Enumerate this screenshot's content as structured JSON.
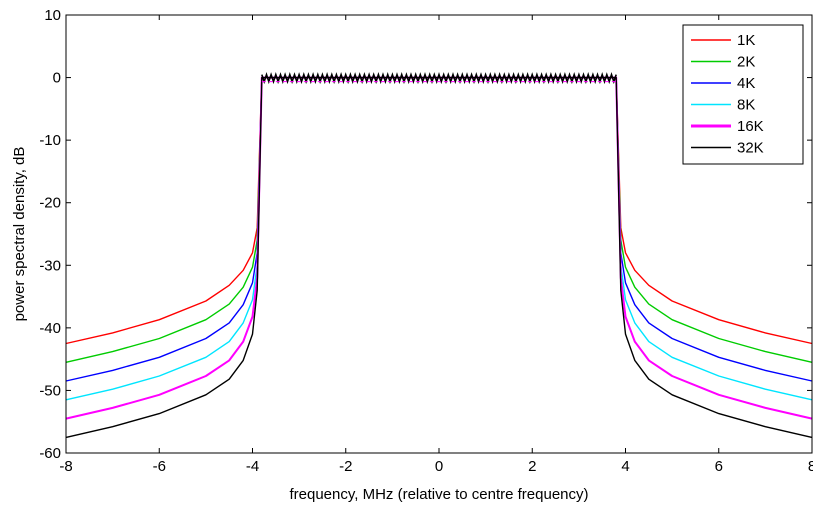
{
  "chart_data": {
    "type": "line",
    "title": "",
    "xlabel": "frequency, MHz (relative to centre frequency)",
    "ylabel": "power spectral density, dB",
    "xlim": [
      -8,
      8
    ],
    "ylim": [
      -60,
      10
    ],
    "xticks": [
      -8,
      -6,
      -4,
      -2,
      0,
      2,
      4,
      6,
      8
    ],
    "yticks": [
      10,
      0,
      -10,
      -20,
      -30,
      -40,
      -50,
      -60
    ],
    "grid": false,
    "legend_position": "top-right",
    "passband_edge_mhz": 3.8,
    "passband_level_db": 0,
    "series": [
      {
        "name": "1K",
        "color": "#ff0000",
        "x": [
          -8,
          -7,
          -6,
          -5,
          -4.5,
          -4.2,
          -4.0,
          -3.9,
          3.9,
          4.0,
          4.2,
          4.5,
          5,
          6,
          7,
          8
        ],
        "y": [
          -42.5,
          -40.8,
          -38.7,
          -35.7,
          -33.2,
          -30.8,
          -28.0,
          -24.0,
          -24.0,
          -28.0,
          -30.8,
          -33.2,
          -35.7,
          -38.7,
          -40.8,
          -42.5
        ]
      },
      {
        "name": "2K",
        "color": "#00cc00",
        "x": [
          -8,
          -7,
          -6,
          -5,
          -4.5,
          -4.2,
          -4.0,
          -3.9,
          3.9,
          4.0,
          4.2,
          4.5,
          5,
          6,
          7,
          8
        ],
        "y": [
          -45.5,
          -43.8,
          -41.7,
          -38.7,
          -36.2,
          -33.5,
          -30.3,
          -26.0,
          -26.0,
          -30.3,
          -33.5,
          -36.2,
          -38.7,
          -41.7,
          -43.8,
          -45.5
        ]
      },
      {
        "name": "4K",
        "color": "#0000ff",
        "x": [
          -8,
          -7,
          -6,
          -5,
          -4.5,
          -4.2,
          -4.0,
          -3.9,
          3.9,
          4.0,
          4.2,
          4.5,
          5,
          6,
          7,
          8
        ],
        "y": [
          -48.5,
          -46.8,
          -44.7,
          -41.7,
          -39.2,
          -36.3,
          -32.8,
          -28.0,
          -28.0,
          -32.8,
          -36.3,
          -39.2,
          -41.7,
          -44.7,
          -46.8,
          -48.5
        ]
      },
      {
        "name": "8K",
        "color": "#00e5ff",
        "x": [
          -8,
          -7,
          -6,
          -5,
          -4.5,
          -4.2,
          -4.0,
          -3.9,
          3.9,
          4.0,
          4.2,
          4.5,
          5,
          6,
          7,
          8
        ],
        "y": [
          -51.5,
          -49.8,
          -47.7,
          -44.7,
          -42.2,
          -39.2,
          -35.5,
          -30.0,
          -30.0,
          -35.5,
          -39.2,
          -42.2,
          -44.7,
          -47.7,
          -49.8,
          -51.5
        ]
      },
      {
        "name": "16K",
        "color": "#ff00ff",
        "x": [
          -8,
          -7,
          -6,
          -5,
          -4.5,
          -4.2,
          -4.0,
          -3.9,
          3.9,
          4.0,
          4.2,
          4.5,
          5,
          6,
          7,
          8
        ],
        "y": [
          -54.5,
          -52.8,
          -50.7,
          -47.7,
          -45.2,
          -42.2,
          -38.2,
          -32.0,
          -32.0,
          -38.2,
          -42.2,
          -45.2,
          -47.7,
          -50.7,
          -52.8,
          -54.5
        ]
      },
      {
        "name": "32K",
        "color": "#000000",
        "x": [
          -8,
          -7,
          -6,
          -5,
          -4.5,
          -4.2,
          -4.0,
          -3.9,
          3.9,
          4.0,
          4.2,
          4.5,
          5,
          6,
          7,
          8
        ],
        "y": [
          -57.5,
          -55.8,
          -53.7,
          -50.7,
          -48.2,
          -45.2,
          -41.0,
          -34.0,
          -34.0,
          -41.0,
          -45.2,
          -48.2,
          -50.7,
          -53.7,
          -55.8,
          -57.5
        ]
      }
    ]
  }
}
